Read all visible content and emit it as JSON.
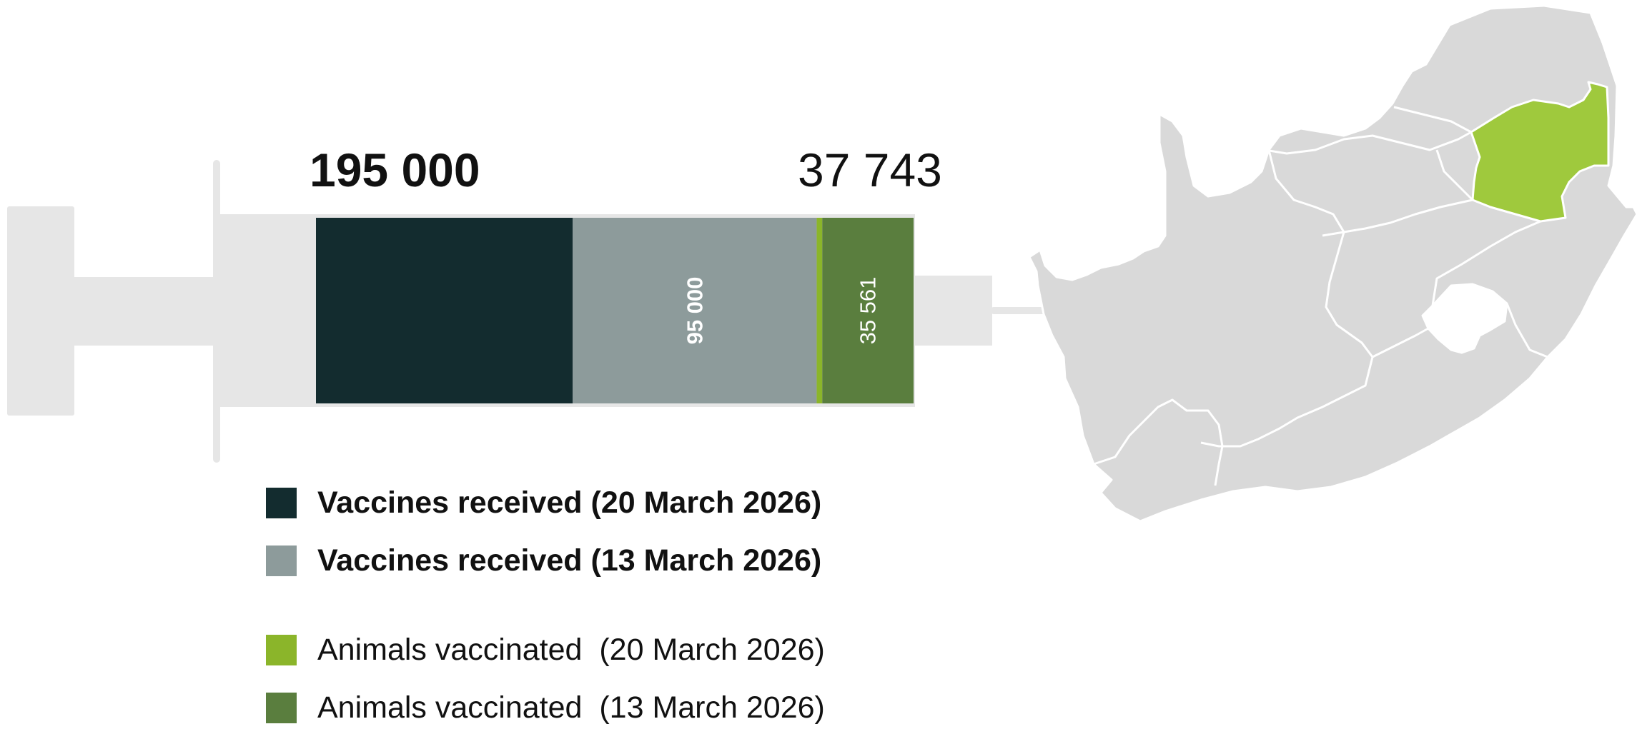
{
  "colors": {
    "received_20_march": "#132c2f",
    "received_13_march": "#8d9b9b",
    "vaccinated_20_march": "#8bb52a",
    "vaccinated_13_march": "#5a7e3e",
    "syringe": "#e6e6e6",
    "province_default": "#d9d9d9",
    "province_highlight": "#9fc93d",
    "province_border": "#ffffff"
  },
  "totals": {
    "received": "195 000",
    "vaccinated": "37 743"
  },
  "chart_data": {
    "type": "bar",
    "orientation": "horizontal-stacked",
    "series": [
      {
        "name": "Vaccines received (20 March 2026)",
        "value": 100000,
        "color": "#132c2f"
      },
      {
        "name": "Vaccines received (13 March 2026)",
        "value": 95000,
        "label": "95 000",
        "label_weight": "bold",
        "color": "#8d9b9b"
      },
      {
        "name": "Animals vaccinated  (20 March 2026)",
        "value": 2182,
        "color": "#8bb52a"
      },
      {
        "name": "Animals vaccinated  (13 March 2026)",
        "value": 35561,
        "label": "35 561",
        "label_weight": "normal",
        "color": "#5a7e3e"
      }
    ],
    "legend_placement": "bottom-left"
  },
  "legend": [
    {
      "label": "Vaccines received (20 March 2026)",
      "bold": true,
      "color": "#132c2f"
    },
    {
      "label": "Vaccines received (13 March 2026)",
      "bold": true,
      "color": "#8d9b9b"
    },
    {
      "label": "Animals vaccinated  (20 March 2026)",
      "bold": false,
      "color": "#8bb52a"
    },
    {
      "label": "Animals vaccinated  (13 March 2026)",
      "bold": false,
      "color": "#5a7e3e"
    }
  ],
  "map": {
    "region": "South Africa",
    "highlighted_province": "Mpumalanga"
  }
}
